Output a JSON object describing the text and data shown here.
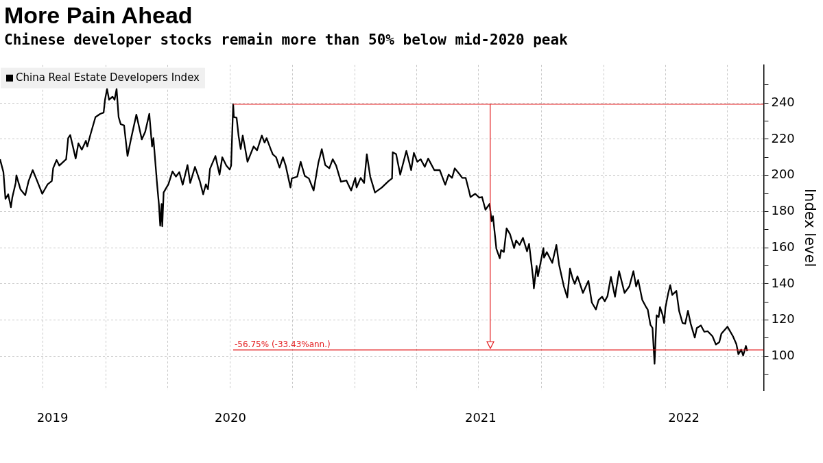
{
  "chart_data": {
    "type": "line",
    "title": "More Pain Ahead",
    "subtitle": "Chinese developer stocks remain more than 50% below mid-2020 peak",
    "ylabel": "Index level",
    "x": [
      "2019-07-30",
      "2019-08-04",
      "2019-08-07",
      "2019-08-11",
      "2019-08-15",
      "2019-08-17",
      "2019-08-22",
      "2019-08-23",
      "2019-08-29",
      "2019-09-05",
      "2019-09-10",
      "2019-09-16",
      "2019-09-21",
      "2019-09-30",
      "2019-10-08",
      "2019-10-14",
      "2019-10-16",
      "2019-10-21",
      "2019-10-25",
      "2019-11-04",
      "2019-11-07",
      "2019-11-10",
      "2019-11-18",
      "2019-11-22",
      "2019-11-27",
      "2019-12-03",
      "2019-12-05",
      "2019-12-10",
      "2019-12-17",
      "2019-12-24",
      "2019-12-29",
      "2019-12-31",
      "2020-01-03",
      "2020-01-06",
      "2020-01-11",
      "2020-01-14",
      "2020-01-17",
      "2020-01-20",
      "2020-01-23",
      "2020-01-28",
      "2020-02-02",
      "2020-02-07",
      "2020-02-15",
      "2020-02-23",
      "2020-02-28",
      "2020-03-05",
      "2020-03-09",
      "2020-03-11",
      "2020-03-16",
      "2020-03-19",
      "2020-03-21",
      "2020-03-23",
      "2020-03-24",
      "2020-03-26",
      "2020-04-02",
      "2020-04-08",
      "2020-04-13",
      "2020-04-18",
      "2020-04-23",
      "2020-04-30",
      "2020-05-04",
      "2020-05-11",
      "2020-05-18",
      "2020-05-23",
      "2020-05-27",
      "2020-05-30",
      "2020-06-02",
      "2020-06-10",
      "2020-06-16",
      "2020-06-20",
      "2020-06-26",
      "2020-07-01",
      "2020-07-03",
      "2020-07-06",
      "2020-07-07",
      "2020-07-11",
      "2020-07-14",
      "2020-07-17",
      "2020-07-20",
      "2020-07-23",
      "2020-07-27",
      "2020-08-05",
      "2020-08-10",
      "2020-08-17",
      "2020-08-21",
      "2020-08-24",
      "2020-08-30",
      "2020-09-02",
      "2020-09-07",
      "2020-09-12",
      "2020-09-17",
      "2020-09-21",
      "2020-09-28",
      "2020-09-30",
      "2020-10-08",
      "2020-10-13",
      "2020-10-19",
      "2020-10-25",
      "2020-11-01",
      "2020-11-08",
      "2020-11-13",
      "2020-11-18",
      "2020-11-24",
      "2020-11-29",
      "2020-12-04",
      "2020-12-11",
      "2020-12-19",
      "2020-12-26",
      "2021-01-01",
      "2021-01-03",
      "2021-01-09",
      "2021-01-14",
      "2021-01-18",
      "2021-01-23",
      "2021-01-30",
      "2021-02-09",
      "2021-02-19",
      "2021-02-24",
      "2021-02-25",
      "2021-03-02",
      "2021-03-08",
      "2021-03-17",
      "2021-03-24",
      "2021-03-28",
      "2021-04-02",
      "2021-04-07",
      "2021-04-13",
      "2021-04-18",
      "2021-04-27",
      "2021-05-05",
      "2021-05-13",
      "2021-05-18",
      "2021-05-23",
      "2021-05-27",
      "2021-06-02",
      "2021-06-07",
      "2021-06-12",
      "2021-06-17",
      "2021-06-19",
      "2021-06-26",
      "2021-07-02",
      "2021-07-06",
      "2021-07-11",
      "2021-07-17",
      "2021-07-20",
      "2021-07-22",
      "2021-07-27",
      "2021-08-01",
      "2021-08-03",
      "2021-08-07",
      "2021-08-11",
      "2021-08-16",
      "2021-08-22",
      "2021-08-25",
      "2021-08-30",
      "2021-09-04",
      "2021-09-10",
      "2021-09-13",
      "2021-09-19",
      "2021-09-20",
      "2021-09-24",
      "2021-09-26",
      "2021-10-04",
      "2021-10-05",
      "2021-10-09",
      "2021-10-17",
      "2021-10-23",
      "2021-10-27",
      "2021-11-03",
      "2021-11-08",
      "2021-11-12",
      "2021-11-16",
      "2021-11-19",
      "2021-11-23",
      "2021-12-01",
      "2021-12-09",
      "2021-12-14",
      "2021-12-20",
      "2021-12-24",
      "2021-12-29",
      "2022-01-02",
      "2022-01-06",
      "2022-01-11",
      "2022-01-17",
      "2022-01-23",
      "2022-01-31",
      "2022-02-07",
      "2022-02-13",
      "2022-02-17",
      "2022-02-20",
      "2022-02-26",
      "2022-03-03",
      "2022-03-06",
      "2022-03-10",
      "2022-03-13",
      "2022-03-16",
      "2022-03-19",
      "2022-03-22",
      "2022-03-24",
      "2022-03-28",
      "2022-03-30",
      "2022-04-01",
      "2022-04-05",
      "2022-04-08",
      "2022-04-11",
      "2022-04-17",
      "2022-04-21",
      "2022-04-26",
      "2022-04-30",
      "2022-05-04",
      "2022-05-08",
      "2022-05-14",
      "2022-05-17",
      "2022-05-23",
      "2022-05-28",
      "2022-06-02",
      "2022-06-09",
      "2022-06-14",
      "2022-06-19",
      "2022-06-22",
      "2022-07-01",
      "2022-07-09",
      "2022-07-14",
      "2022-07-17",
      "2022-07-21",
      "2022-07-24",
      "2022-07-28",
      "2022-07-30"
    ],
    "series": [
      {
        "name": "China Real Estate Developers Index",
        "color": "#000000",
        "values": [
          208.9,
          201.8,
          187,
          189.5,
          182.4,
          187.7,
          195.8,
          200,
          192.3,
          189,
          196.9,
          202.9,
          198.3,
          189.8,
          195.1,
          196.9,
          204,
          208.5,
          205.4,
          208.9,
          220.6,
          222.3,
          209.3,
          217.7,
          214.2,
          219.1,
          216,
          223,
          232.2,
          234,
          234.7,
          241.8,
          247.8,
          241.8,
          243.5,
          241.8,
          247.8,
          232.2,
          228.3,
          227.6,
          210.7,
          219.9,
          233.6,
          219.9,
          224.1,
          234,
          216,
          220.6,
          196.9,
          184.2,
          172.1,
          184.2,
          171.8,
          190.5,
          195.1,
          202.2,
          199.3,
          201.8,
          194.8,
          205.7,
          195.8,
          204.7,
          196.9,
          189.5,
          195.1,
          192.3,
          203.6,
          210.7,
          200.4,
          210,
          205.4,
          203.2,
          205.4,
          239.3,
          232.2,
          231.9,
          221.6,
          214.5,
          222,
          216,
          207.5,
          216,
          213.8,
          222,
          218.1,
          220.6,
          214.5,
          211.7,
          210,
          204.3,
          210,
          205.4,
          193.3,
          198.3,
          199.3,
          207.5,
          199.7,
          198.3,
          191.6,
          207.1,
          214.5,
          205.7,
          203.9,
          208.9,
          205.4,
          196.5,
          197.2,
          191.6,
          198.6,
          193.3,
          198.6,
          195.8,
          211.7,
          199.3,
          190.5,
          193.3,
          196.9,
          198.3,
          212.8,
          211.7,
          200.4,
          213.5,
          202.9,
          212.4,
          207.5,
          208.9,
          204.7,
          209.3,
          202.9,
          202.9,
          194.8,
          200.4,
          198.6,
          203.9,
          201.1,
          198.6,
          198.6,
          191.2,
          188,
          189.8,
          187.7,
          188,
          181,
          184.2,
          174.6,
          177.4,
          159.4,
          154.1,
          158.7,
          157.6,
          170.7,
          167.5,
          159.8,
          164,
          161.5,
          165.4,
          158,
          162.2,
          142.8,
          137.5,
          149.9,
          144.2,
          159.8,
          154.5,
          157.6,
          151.6,
          161.5,
          150.6,
          138.6,
          132.5,
          148.4,
          142.8,
          140,
          144.2,
          135,
          141.7,
          129.7,
          125.8,
          131.1,
          132.9,
          130.4,
          133.2,
          143.9,
          132.9,
          147,
          135,
          138.6,
          147,
          138.6,
          142.1,
          131.1,
          127.6,
          125.8,
          117.3,
          115.6,
          95.8,
          122.6,
          121.6,
          127.2,
          122.6,
          118.4,
          126.9,
          134.7,
          139.3,
          133.9,
          136.1,
          125.1,
          118.4,
          118,
          125.1,
          118,
          110.3,
          115.6,
          117,
          113.5,
          113.8,
          111,
          106.4,
          107.8,
          112.4,
          116.3,
          111,
          106.7,
          101.1,
          103.6,
          100.4,
          105.7,
          102.8
        ]
      }
    ],
    "xlim": [
      "2019-07-30",
      "2022-08-23"
    ],
    "xticks": [
      {
        "value": "2019-10-01",
        "label": null
      },
      {
        "value": "2019-10-15",
        "label": "2019"
      },
      {
        "value": "2020-01-01",
        "label": null
      },
      {
        "value": "2020-04-01",
        "label": null
      },
      {
        "value": "2020-07-01",
        "label": null
      },
      {
        "value": "2020-07-02",
        "label": "2020"
      },
      {
        "value": "2020-10-01",
        "label": null
      },
      {
        "value": "2021-01-01",
        "label": null
      },
      {
        "value": "2021-04-01",
        "label": null
      },
      {
        "value": "2021-07-01",
        "label": null
      },
      {
        "value": "2021-07-04",
        "label": "2021"
      },
      {
        "value": "2021-10-01",
        "label": null
      },
      {
        "value": "2022-01-01",
        "label": null
      },
      {
        "value": "2022-04-01",
        "label": null
      },
      {
        "value": "2022-04-28",
        "label": "2022"
      },
      {
        "value": "2022-07-01",
        "label": null
      }
    ],
    "ylim": [
      81,
      261
    ],
    "yticks": [
      {
        "value": 90,
        "label": null
      },
      100,
      {
        "value": 110,
        "label": null
      },
      120,
      {
        "value": 130,
        "label": null
      },
      140,
      {
        "value": 150,
        "label": null
      },
      160,
      {
        "value": 170,
        "label": null
      },
      180,
      {
        "value": 190,
        "label": null
      },
      200,
      {
        "value": 210,
        "label": null
      },
      220,
      {
        "value": 230,
        "label": null
      },
      240,
      {
        "value": 250,
        "label": null
      }
    ],
    "grid": true,
    "legend": "top left",
    "ref_lines": [
      {
        "axis": "y",
        "value": 239.3,
        "color": "#e31a1c"
      },
      {
        "axis": "y",
        "value": 103.5,
        "color": "#e31a1c"
      },
      {
        "axis": "x",
        "value": "2021-07-18",
        "color": "#e31a1c"
      }
    ],
    "annotations": [
      {
        "text": "-56.75% (-33.43%ann.)",
        "x": "2020-07-06",
        "y": 103.5
      }
    ]
  }
}
